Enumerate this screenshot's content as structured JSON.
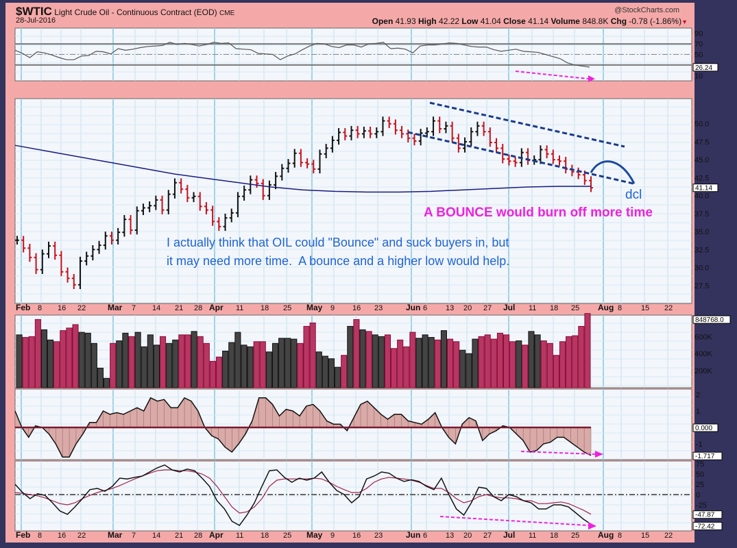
{
  "header": {
    "symbol": "$WTIC",
    "name": "Light Crude Oil - Continuous Contract (EOD)",
    "exchange": "CME",
    "date": "28-Jul-2016",
    "watermark": "@StockCharts.com",
    "quote": {
      "open_label": "Open",
      "open": "41.93",
      "high_label": "High",
      "high": "42.22",
      "low_label": "Low",
      "low": "41.04",
      "close_label": "Close",
      "close": "41.14",
      "volume_label": "Volume",
      "volume": "848.8K",
      "chg_label": "Chg",
      "chg": "-0.78 (-1.86%)",
      "direction_icon": "▼"
    }
  },
  "annotations": {
    "main_note_line1": "I actually think that OIL could \"Bounce\" and suck buyers in, but",
    "main_note_line2": "it may need more time.  A bounce and a higher low would help.",
    "bounce_note_bold": "A BOUNCE",
    "bounce_note_rest": " would burn off more time",
    "dcl_label": "dcl",
    "colors": {
      "blue_note": "#1f63d6",
      "pink_note": "#ee22dd",
      "trendline": "#1a3a8a",
      "arc": "#1a4aa0"
    }
  },
  "x_axis": {
    "labels": [
      {
        "t": "Feb",
        "bold": true
      },
      {
        "t": "8"
      },
      {
        "t": "16"
      },
      {
        "t": "22"
      },
      {
        "t": "Mar",
        "bold": true
      },
      {
        "t": "7"
      },
      {
        "t": "14"
      },
      {
        "t": "21"
      },
      {
        "t": "28"
      },
      {
        "t": "Apr",
        "bold": true
      },
      {
        "t": "11"
      },
      {
        "t": "18"
      },
      {
        "t": "25"
      },
      {
        "t": "May",
        "bold": true
      },
      {
        "t": "9"
      },
      {
        "t": "16"
      },
      {
        "t": "23"
      },
      {
        "t": "Jun",
        "bold": true
      },
      {
        "t": "6"
      },
      {
        "t": "13"
      },
      {
        "t": "20"
      },
      {
        "t": "27"
      },
      {
        "t": "Jul",
        "bold": true
      },
      {
        "t": "11"
      },
      {
        "t": "18"
      },
      {
        "t": "25"
      },
      {
        "t": "Aug",
        "bold": true
      },
      {
        "t": "8"
      },
      {
        "t": "15"
      },
      {
        "t": "22"
      }
    ]
  },
  "chart_data": [
    {
      "type": "line",
      "title": "RSI(14)",
      "ylim": [
        0,
        100
      ],
      "ticks": [
        "90",
        "70",
        "50",
        "30",
        "10"
      ],
      "reference_lines": [
        70,
        50,
        30
      ],
      "last_value_tag": "26.24",
      "series": [
        {
          "name": "RSI",
          "values": [
            58,
            52,
            44,
            55,
            53,
            49,
            44,
            40,
            40,
            47,
            48,
            56,
            55,
            51,
            61,
            58,
            60,
            63,
            65,
            66,
            67,
            73,
            69,
            71,
            69,
            66,
            69,
            73,
            71,
            72,
            61,
            60,
            59,
            52,
            51,
            50,
            40,
            47,
            51,
            59,
            66,
            71,
            70,
            65,
            63,
            68,
            68,
            64,
            70,
            71,
            73,
            61,
            62,
            60,
            53,
            66,
            68,
            68,
            70,
            72,
            71,
            68,
            65,
            64,
            64,
            59,
            56,
            58,
            60,
            56,
            55,
            54,
            50,
            46,
            42,
            34,
            30,
            28,
            26
          ]
        }
      ],
      "annotation": "magenta dashed arrow showing lower lows (divergence) from early Jul to end of Jul"
    },
    {
      "type": "bar",
      "title": "$WTIC daily OHLC bars with 200-day moving average",
      "ylim": [
        25.0,
        53.5
      ],
      "ticks": [
        "50.0",
        "47.5",
        "45.0",
        "42.5",
        "40.0",
        "37.5",
        "35.0",
        "32.5",
        "30.0",
        "27.5"
      ],
      "last_value_tag": "41.14",
      "series": [
        {
          "name": "Close (approx)",
          "values": [
            33.8,
            32.7,
            31.4,
            29.7,
            31.9,
            33.0,
            31.7,
            29.4,
            28.5,
            27.6,
            30.9,
            31.6,
            32.5,
            33.1,
            34.4,
            33.8,
            34.9,
            36.7,
            35.2,
            37.9,
            38.3,
            38.6,
            39.4,
            38.0,
            40.2,
            41.8,
            40.9,
            39.7,
            39.9,
            38.5,
            38.0,
            36.4,
            35.7,
            36.9,
            37.6,
            39.9,
            40.8,
            42.2,
            41.7,
            40.0,
            41.5,
            42.7,
            43.8,
            44.5,
            45.9,
            44.6,
            44.4,
            43.7,
            45.8,
            46.6,
            47.7,
            48.8,
            48.3,
            49.1,
            48.6,
            49.0,
            48.6,
            48.9,
            50.4,
            50.0,
            49.1,
            48.6,
            48.0,
            47.6,
            48.7,
            48.9,
            50.4,
            49.3,
            49.7,
            48.0,
            46.6,
            47.5,
            48.9,
            49.7,
            48.9,
            47.4,
            46.6,
            45.1,
            44.8,
            44.6,
            46.0,
            44.9,
            45.0,
            46.4,
            45.8,
            45.0,
            44.8,
            43.7,
            43.3,
            42.9,
            42.1,
            41.1
          ]
        },
        {
          "name": "MA(200)",
          "values": [
            47.0,
            46.2,
            45.4,
            44.6,
            43.8,
            43.0,
            42.4,
            41.8,
            41.2,
            40.8,
            40.6,
            40.5,
            40.5,
            40.6,
            40.8,
            41.0,
            41.2,
            41.3,
            41.3
          ]
        }
      ],
      "trend_channel": {
        "upper": [
          [
            627,
            150
          ],
          [
            911,
            214
          ]
        ],
        "lower": [
          [
            595,
            193
          ],
          [
            924,
            268
          ]
        ]
      },
      "projection_arc": "bounce to ~43.9 then descent to ~41 by ~Aug 10 labeled dcl"
    },
    {
      "type": "bar",
      "title": "Volume",
      "ticks": [
        "800K",
        "600K",
        "400K",
        "200K"
      ],
      "last_value_tag": "848768.0",
      "series": [
        {
          "name": "Volume (K)",
          "values": [
            620,
            590,
            600,
            800,
            680,
            560,
            540,
            670,
            700,
            740,
            650,
            640,
            520,
            230,
            110,
            520,
            550,
            640,
            600,
            650,
            480,
            620,
            500,
            600,
            520,
            560,
            620,
            620,
            660,
            600,
            520,
            310,
            360,
            430,
            530,
            650,
            500,
            480,
            540,
            540,
            420,
            520,
            580,
            580,
            570,
            520,
            720,
            760,
            420,
            370,
            340,
            240,
            380,
            720,
            800,
            680,
            660,
            620,
            600,
            620,
            460,
            560,
            480,
            650,
            580,
            620,
            590,
            560,
            670,
            570,
            540,
            440,
            400,
            570,
            600,
            620,
            570,
            640,
            620,
            540,
            550,
            500,
            660,
            620,
            550,
            520,
            380,
            540,
            600,
            610,
            720,
            870
          ]
        }
      ]
    },
    {
      "type": "area",
      "title": "MACD Histogram",
      "ticks": [
        "2",
        "1",
        "0.000",
        "-1",
        "-1.717"
      ],
      "zero_tag": "0.000",
      "last_value_tag": "-1.717",
      "series": [
        {
          "name": "Histogram",
          "values": [
            1.0,
            0.0,
            -0.6,
            0.1,
            0.0,
            -0.4,
            -1.0,
            -1.8,
            -1.8,
            -1.0,
            -0.4,
            0.3,
            0.3,
            1.0,
            0.8,
            0.9,
            0.8,
            1.0,
            1.2,
            1.0,
            1.8,
            1.6,
            1.7,
            1.2,
            1.2,
            1.8,
            1.6,
            1.0,
            0.0,
            -0.5,
            -0.7,
            -1.2,
            -1.5,
            -1.0,
            -0.4,
            0.4,
            1.8,
            1.8,
            1.4,
            0.7,
            1.1,
            1.0,
            0.7,
            1.3,
            1.4,
            1.0,
            0.4,
            0.2,
            0.2,
            -0.2,
            0.6,
            1.4,
            1.6,
            1.2,
            0.8,
            0.5,
            0.8,
            0.8,
            0.4,
            0.3,
            0.2,
            0.5,
            0.9,
            0.0,
            -0.6,
            -1.0,
            0.2,
            0.6,
            0.4,
            -0.8,
            -0.4,
            -0.2,
            0.1,
            0.0,
            -0.4,
            -0.8,
            -1.5,
            -1.4,
            -1.0,
            -0.9,
            -0.6,
            -0.6,
            -0.9,
            -1.2,
            -1.5,
            -1.7
          ]
        }
      ]
    },
    {
      "type": "line",
      "title": "Momentum oscillator with signal line",
      "ylim": [
        -85,
        95
      ],
      "ticks": [
        "75",
        "50",
        "25",
        "0",
        "-25"
      ],
      "last_value_tags": [
        "-47.87",
        "-72.42"
      ],
      "series": [
        {
          "name": "Oscillator",
          "values": [
            25,
            5,
            -10,
            2,
            -2,
            -20,
            -40,
            -48,
            -30,
            -10,
            12,
            15,
            8,
            20,
            40,
            38,
            42,
            45,
            55,
            65,
            72,
            60,
            55,
            62,
            58,
            40,
            20,
            -15,
            -35,
            -65,
            -75,
            -50,
            -20,
            20,
            58,
            60,
            42,
            30,
            40,
            35,
            40,
            55,
            30,
            10,
            0,
            -20,
            -5,
            38,
            45,
            55,
            52,
            40,
            32,
            36,
            32,
            20,
            12,
            40,
            0,
            -35,
            -50,
            -20,
            18,
            15,
            -5,
            -15,
            0,
            -5,
            -15,
            -20,
            -35,
            -35,
            -25,
            -25,
            -30,
            -45,
            -60,
            -72
          ]
        },
        {
          "name": "Signal",
          "values": [
            5,
            3,
            0,
            -3,
            -8,
            -15,
            -22,
            -25,
            -20,
            -10,
            -2,
            5,
            10,
            15,
            22,
            30,
            38,
            45,
            52,
            58,
            60,
            60,
            58,
            58,
            55,
            50,
            40,
            20,
            -5,
            -30,
            -45,
            -42,
            -30,
            -10,
            20,
            35,
            38,
            38,
            38,
            38,
            40,
            38,
            30,
            20,
            12,
            5,
            5,
            15,
            30,
            38,
            42,
            40,
            38,
            35,
            30,
            22,
            15,
            15,
            5,
            -10,
            -20,
            -15,
            -5,
            0,
            -5,
            -8,
            -8,
            -10,
            -15,
            -15,
            -22,
            -22,
            -20,
            -18,
            -22,
            -30,
            -38,
            -48
          ]
        }
      ]
    }
  ]
}
